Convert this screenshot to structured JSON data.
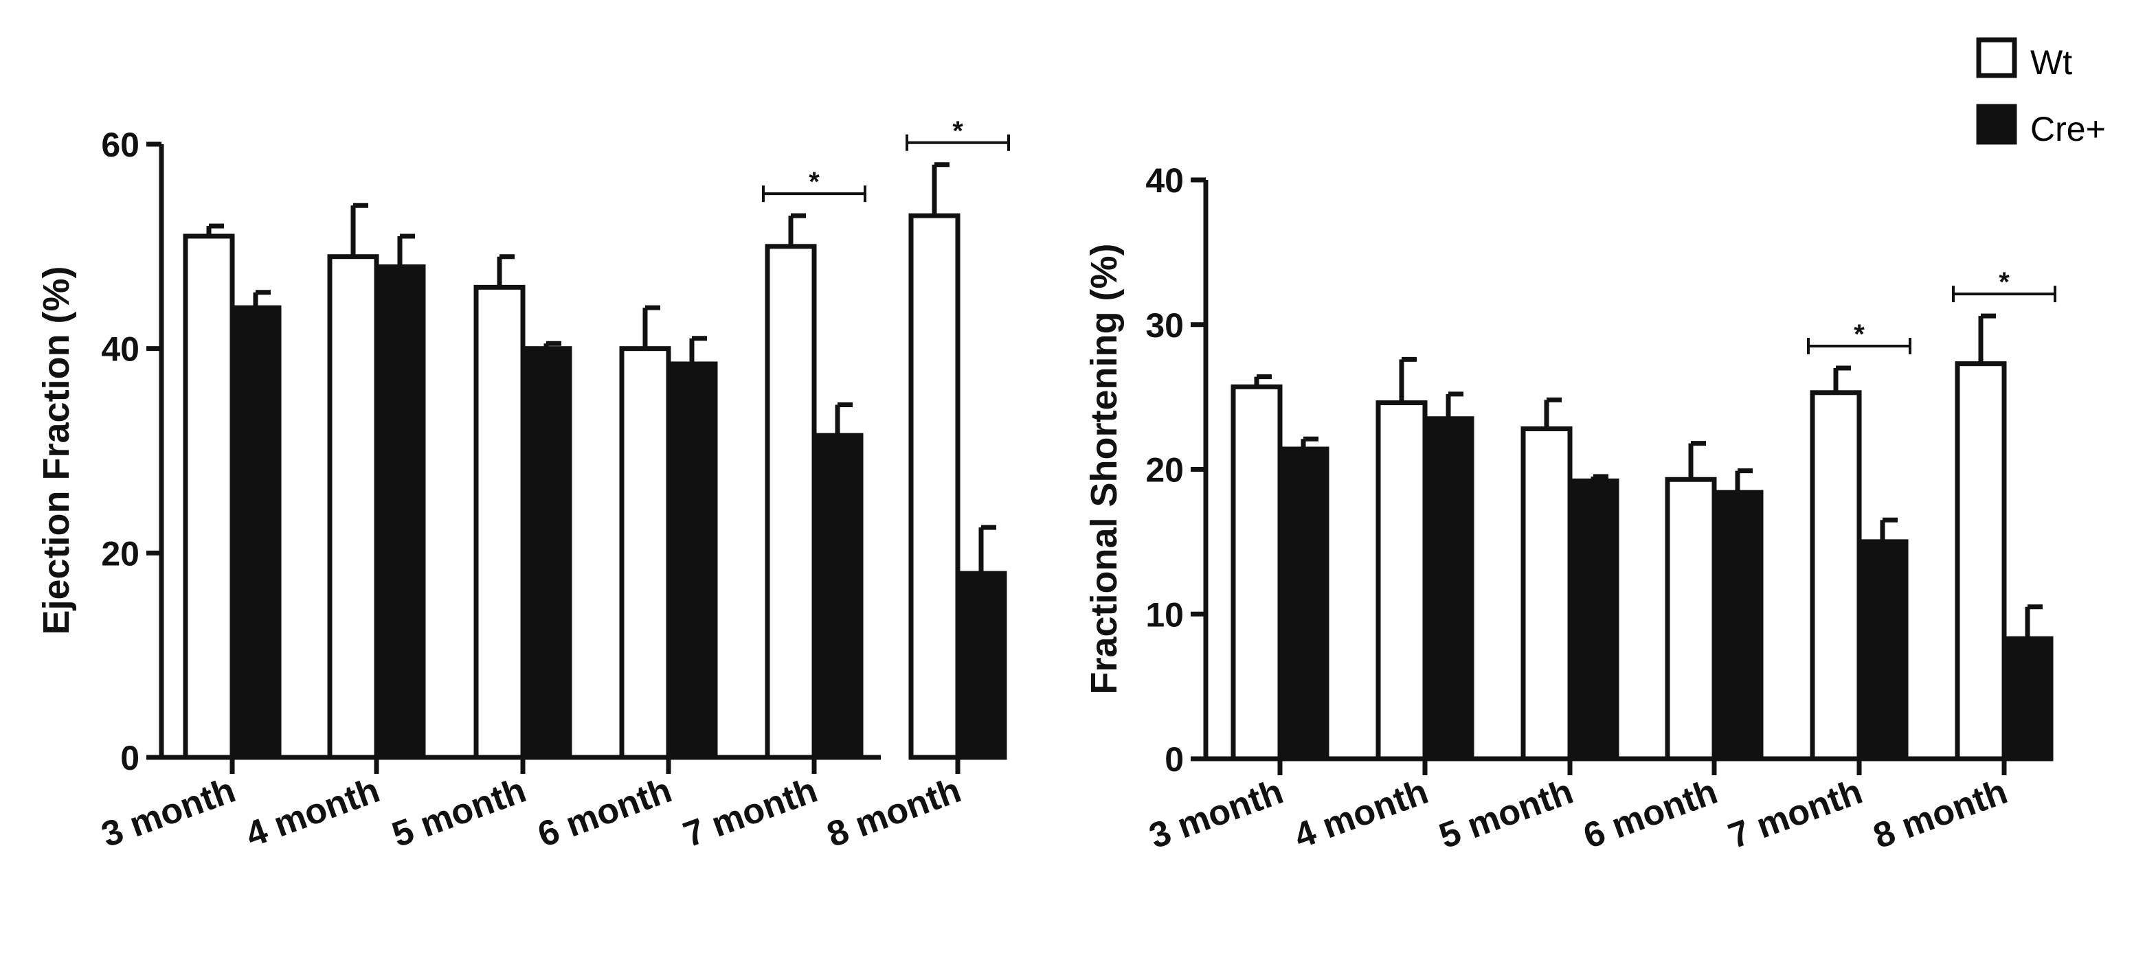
{
  "chart_data": [
    {
      "type": "bar",
      "title": "",
      "xlabel": "",
      "ylabel": "Ejection Fraction (%)",
      "ylim": [
        0,
        60
      ],
      "yticks": [
        0,
        20,
        40,
        60
      ],
      "categories": [
        "3 month",
        "4 month",
        "5 month",
        "6 month",
        "7 month",
        "8 month"
      ],
      "series": [
        {
          "name": "Wt",
          "values": [
            51,
            49,
            46,
            40,
            50,
            53
          ],
          "errors": [
            1,
            5,
            3,
            4,
            3,
            5
          ]
        },
        {
          "name": "Cre+",
          "values": [
            44,
            48,
            40,
            38.5,
            31.5,
            18
          ],
          "errors": [
            1.5,
            3,
            0.5,
            2.5,
            3,
            4.5
          ]
        }
      ],
      "significance": [
        {
          "category_index": 4,
          "label": "*"
        },
        {
          "category_index": 5,
          "label": "*"
        }
      ]
    },
    {
      "type": "bar",
      "title": "",
      "xlabel": "",
      "ylabel": "Fractional Shortening (%)",
      "ylim": [
        0,
        40
      ],
      "yticks": [
        0,
        10,
        20,
        30,
        40
      ],
      "categories": [
        "3 month",
        "4 month",
        "5 month",
        "6 month",
        "7 month",
        "8 month"
      ],
      "series": [
        {
          "name": "Wt",
          "values": [
            25.7,
            24.6,
            22.8,
            19.3,
            25.3,
            27.3
          ],
          "errors": [
            0.7,
            3,
            2,
            2.5,
            1.7,
            3.3
          ]
        },
        {
          "name": "Cre+",
          "values": [
            21.4,
            23.5,
            19.2,
            18.4,
            15,
            8.3
          ],
          "errors": [
            0.7,
            1.7,
            0.3,
            1.5,
            1.5,
            2.2
          ]
        }
      ],
      "significance": [
        {
          "category_index": 4,
          "label": "*"
        },
        {
          "category_index": 5,
          "label": "*"
        }
      ]
    }
  ],
  "legend": {
    "items": [
      {
        "label": "Wt",
        "fill": "#ffffff"
      },
      {
        "label": "Cre+",
        "fill": "#111111"
      }
    ]
  },
  "colors": {
    "axis": "#111111",
    "wt_fill": "#ffffff",
    "cre_fill": "#111111"
  }
}
